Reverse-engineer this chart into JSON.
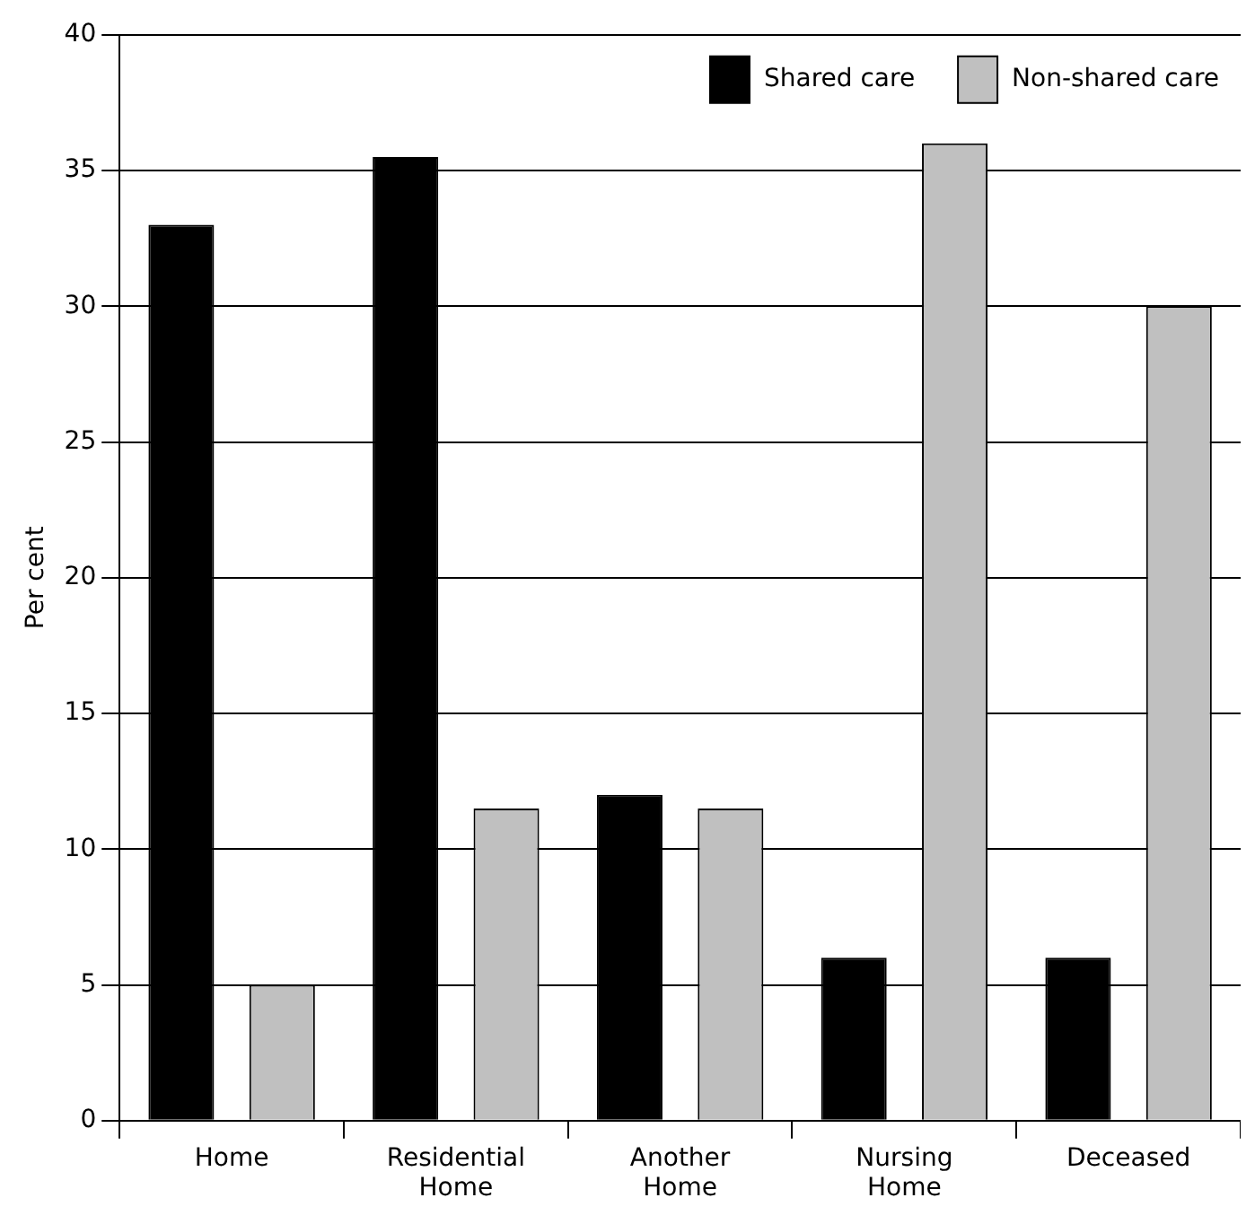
{
  "chart_data": {
    "type": "bar",
    "ylabel": "Per cent",
    "categories": [
      "Home",
      "Residential\nHome",
      "Another\nHome",
      "Nursing\nHome",
      "Deceased"
    ],
    "series": [
      {
        "name": "Shared care",
        "color": "#000000",
        "values": [
          33,
          35.5,
          12,
          6,
          6
        ]
      },
      {
        "name": "Non-shared care",
        "color": "#c0c0c0",
        "values": [
          5,
          11.5,
          11.5,
          36,
          30
        ]
      }
    ],
    "ylim": [
      0,
      40
    ],
    "yticks": [
      0,
      5,
      10,
      15,
      20,
      25,
      30,
      35,
      40
    ],
    "grid": "y",
    "legend": "top right"
  }
}
